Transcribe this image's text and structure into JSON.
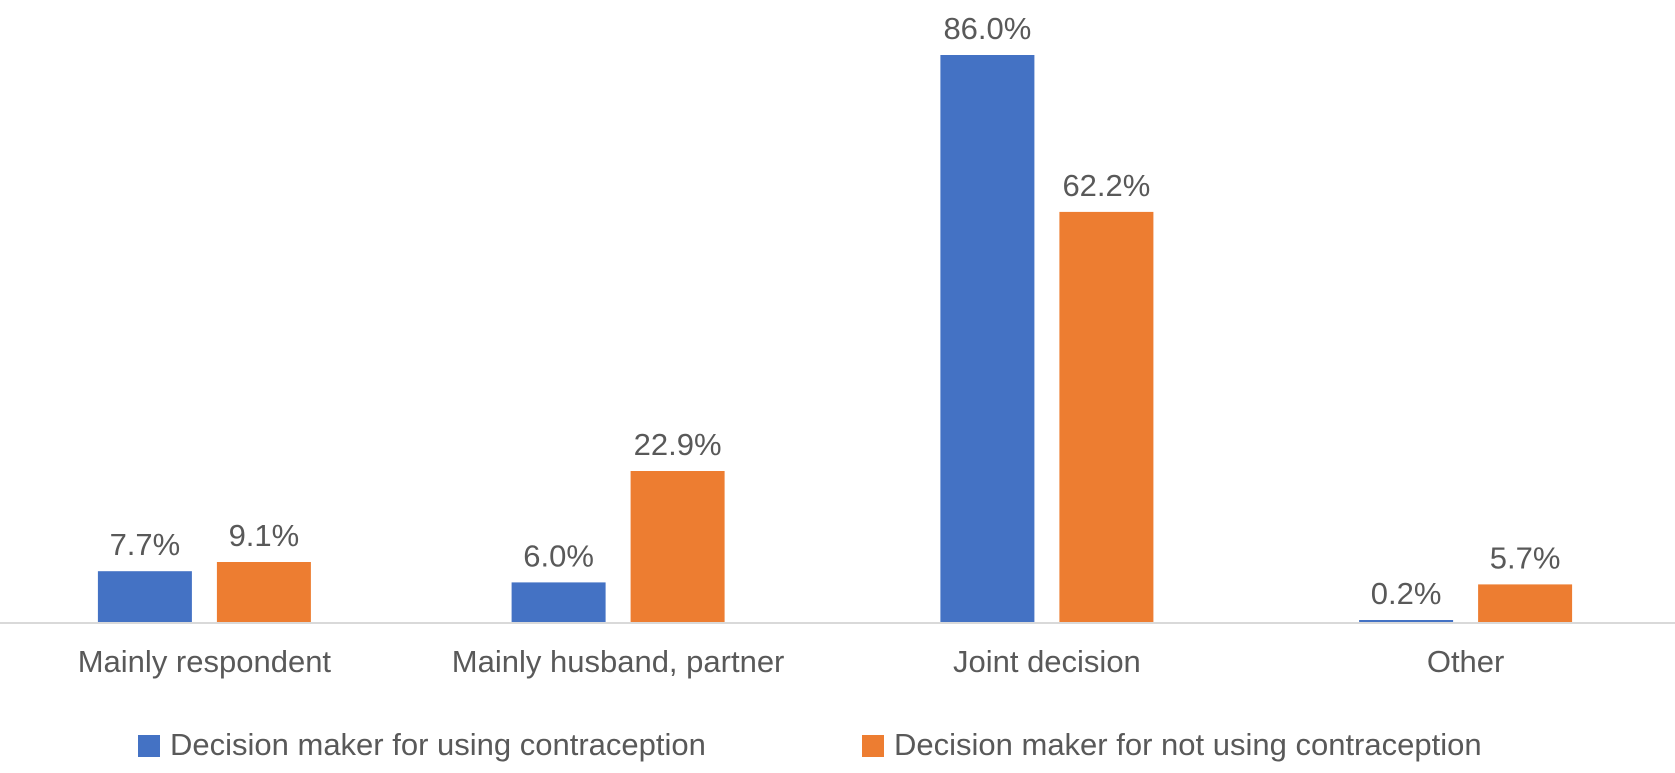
{
  "chart_data": {
    "type": "bar",
    "categories": [
      "Mainly respondent",
      "Mainly husband, partner",
      "Joint decision",
      "Other"
    ],
    "series": [
      {
        "name": "Decision maker for using contraception",
        "color": "#4472C4",
        "values": [
          7.7,
          6.0,
          86.0,
          0.2
        ],
        "labels": [
          "7.7%",
          "6.0%",
          "86.0%",
          "0.2%"
        ]
      },
      {
        "name": "Decision maker for not using contraception",
        "color": "#ED7D31",
        "values": [
          9.1,
          22.9,
          62.2,
          5.7
        ],
        "labels": [
          "9.1%",
          "22.9%",
          "62.2%",
          "5.7%"
        ]
      }
    ],
    "ylim": [
      0,
      86
    ],
    "grid": false,
    "legend_position": "bottom"
  }
}
